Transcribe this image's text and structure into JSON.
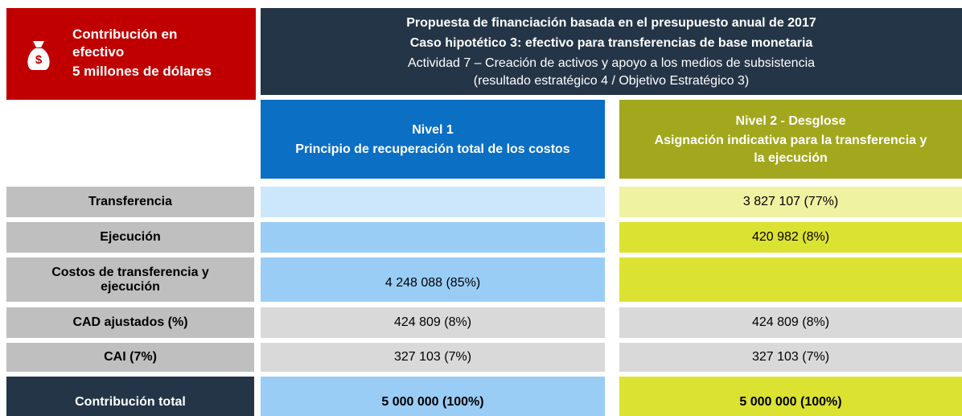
{
  "badge": {
    "icon": "$",
    "lines": [
      "Contribución en",
      "efectivo",
      "5 millones de dólares"
    ]
  },
  "header": {
    "title": "Propuesta de financiación basada en el presupuesto anual de 2017",
    "subtitle": "Caso hipotético 3: efectivo para transferencias de base monetaria",
    "activity": "Actividad 7 – Creación de activos y apoyo a los medios de subsistencia",
    "note": "(resultado estratégico 4 / Objetivo Estratégico 3)"
  },
  "columns": [
    {
      "title": "Nivel 1",
      "subtitle": "Principio de recuperación total de los costos"
    },
    {
      "title": "Nivel 2 - Desglose",
      "subtitle": "Asignación indicativa para la transferencia y la ejecución"
    }
  ],
  "rows": [
    {
      "label": "Transferencia",
      "cells": [
        null,
        "3 827 107 (77%)"
      ]
    },
    {
      "label": "Ejecución",
      "cells": [
        null,
        "420 982 (8%)"
      ]
    },
    {
      "label": "Costos de transferencia y ejecución",
      "cells": [
        "4 248 088 (85%)",
        null
      ]
    },
    {
      "label": "CAD ajustados (%)",
      "cells": [
        "424 809 (8%)",
        "424 809 (8%)"
      ]
    },
    {
      "label": "CAI (7%)",
      "cells": [
        "327 103 (7%)",
        "327 103 (7%)"
      ]
    },
    {
      "label": "Contribución total",
      "cells": [
        "5 000 000 (100%)",
        "5 000 000 (100%)"
      ]
    }
  ]
}
